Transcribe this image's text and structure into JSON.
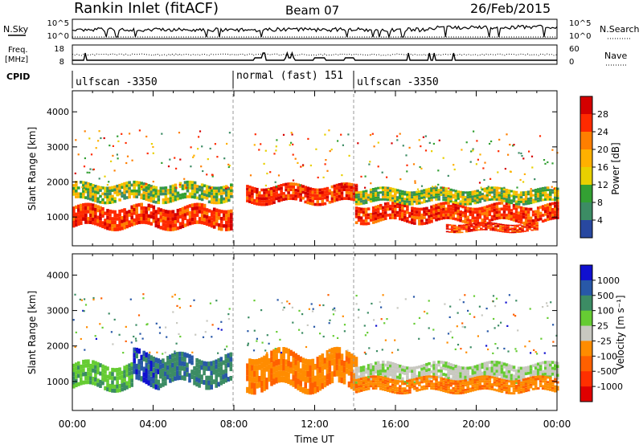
{
  "header": {
    "title": "Rankin Inlet (fitACF)",
    "beam": "Beam 07",
    "date": "26/Feb/2015"
  },
  "top_panels": {
    "nsky_label": "N.Sky",
    "nsky_ticks": [
      "10^5",
      "10^0"
    ],
    "nsearch_label": "N.Search",
    "nsearch_ticks": [
      "10^5",
      "10^0"
    ],
    "freq_label_1": "Freq.",
    "freq_label_2": "[MHz]",
    "freq_ticks": [
      "18",
      "8"
    ],
    "nave_label": "Nave",
    "nave_ticks": [
      "60",
      "0"
    ],
    "cpid_label": "CPID",
    "cpid_segments": [
      {
        "label": "ulfscan -3350",
        "start_h": 0,
        "end_h": 8
      },
      {
        "label": "normal (fast) 151",
        "start_h": 8,
        "end_h": 14
      },
      {
        "label": "ulfscan -3350",
        "start_h": 14,
        "end_h": 24
      }
    ]
  },
  "power_panel": {
    "ylabel": "Slant Range [km]",
    "cbar_label": "Power [dB]",
    "cbar_ticks": [
      "28",
      "24",
      "20",
      "16",
      "12",
      "8",
      "4"
    ],
    "cbar_colors": [
      "#d40000",
      "#ff2a00",
      "#ff7f00",
      "#ffb000",
      "#e8d000",
      "#33a033",
      "#3c8c64",
      "#2848a0",
      "#1010e0"
    ]
  },
  "velocity_panel": {
    "ylabel": "Slant Range [km]",
    "cbar_label": "Velocity [m s⁻¹]",
    "cbar_ticks": [
      "1000",
      "500",
      "100",
      "25",
      "-25",
      "-100",
      "-500",
      "-1000"
    ],
    "cbar_colors": [
      "#1010d0",
      "#2858a8",
      "#3c8c64",
      "#66cc33",
      "#c8c8c0",
      "#ff8c00",
      "#ff6000",
      "#ff3000",
      "#e00000"
    ]
  },
  "xaxis": {
    "xlabel": "Time UT",
    "ticks": [
      "00:00",
      "04:00",
      "08:00",
      "12:00",
      "16:00",
      "20:00",
      "00:00"
    ]
  },
  "chart_data": [
    {
      "type": "heatmap",
      "name_role": "power",
      "xlabel": "Time UT",
      "ylabel": "Slant Range [km]",
      "xlim": [
        0,
        24
      ],
      "ylim": [
        180,
        4600
      ],
      "yticks": [
        1000,
        2000,
        3000,
        4000
      ],
      "colorbar": {
        "label": "Power [dB]",
        "ticks": [
          4,
          8,
          12,
          16,
          20,
          24,
          28
        ]
      },
      "echo_bands": [
        {
          "t0": 0.0,
          "t1": 7.9,
          "r_center": 1000,
          "r_halfwidth": 300,
          "value": "high"
        },
        {
          "t0": 0.0,
          "t1": 7.9,
          "r_center": 1700,
          "r_halfwidth": 250,
          "value": "mid"
        },
        {
          "t0": 8.6,
          "t1": 14.0,
          "r_center": 1650,
          "r_halfwidth": 250,
          "value": "high"
        },
        {
          "t0": 14.0,
          "t1": 24.0,
          "r_center": 1100,
          "r_halfwidth": 250,
          "value": "high"
        },
        {
          "t0": 14.0,
          "t1": 24.0,
          "r_center": 1600,
          "r_halfwidth": 200,
          "value": "mid"
        },
        {
          "t0": 18.5,
          "t1": 23.0,
          "r_center": 700,
          "r_halfwidth": 120,
          "value": "high"
        }
      ]
    },
    {
      "type": "heatmap",
      "name_role": "velocity",
      "xlabel": "Time UT",
      "ylabel": "Slant Range [km]",
      "xlim": [
        0,
        24
      ],
      "ylim": [
        180,
        4600
      ],
      "yticks": [
        1000,
        2000,
        3000,
        4000
      ],
      "colorbar": {
        "label": "Velocity [m s⁻¹]",
        "ticks": [
          1000,
          500,
          100,
          25,
          -25,
          -100,
          -500,
          -1000
        ]
      },
      "echo_bands": [
        {
          "t0": 0.0,
          "t1": 3.0,
          "r_center": 1150,
          "r_halfwidth": 350,
          "value": "green"
        },
        {
          "t0": 3.0,
          "t1": 4.3,
          "r_center": 1350,
          "r_halfwidth": 450,
          "value": "blue"
        },
        {
          "t0": 4.3,
          "t1": 7.9,
          "r_center": 1300,
          "r_halfwidth": 400,
          "value": "teal"
        },
        {
          "t0": 8.6,
          "t1": 14.0,
          "r_center": 1300,
          "r_halfwidth": 500,
          "value": "orange"
        },
        {
          "t0": 14.0,
          "t1": 24.0,
          "r_center": 1250,
          "r_halfwidth": 250,
          "value": "gray"
        },
        {
          "t0": 14.0,
          "t1": 24.0,
          "r_center": 900,
          "r_halfwidth": 200,
          "value": "orange"
        }
      ]
    }
  ]
}
